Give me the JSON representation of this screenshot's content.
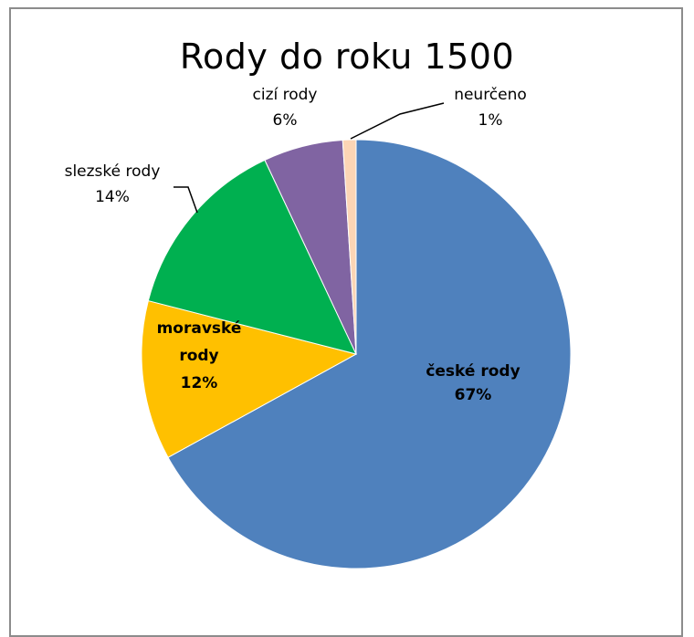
{
  "chart_data": {
    "type": "pie",
    "title": "Rody do roku 1500",
    "slices": [
      {
        "label": "české rody",
        "label_lines": [
          "české rody"
        ],
        "percent_label": "67%",
        "value": 67,
        "color": "#4f81bd"
      },
      {
        "label": "moravské rody",
        "label_lines": [
          "moravské",
          "rody"
        ],
        "percent_label": "12%",
        "value": 12,
        "color": "#ffc000"
      },
      {
        "label": "slezské rody",
        "label_lines": [
          "slezské rody"
        ],
        "percent_label": "14%",
        "value": 14,
        "color": "#00b050"
      },
      {
        "label": "cizí rody",
        "label_lines": [
          "cizí rody"
        ],
        "percent_label": "6%",
        "value": 6,
        "color": "#8064a2"
      },
      {
        "label": "neurčeno",
        "label_lines": [
          "neurčeno"
        ],
        "percent_label": "1%",
        "value": 1,
        "color": "#fcd5b5"
      }
    ],
    "start": "top",
    "direction": "clockwise",
    "legend": "none"
  }
}
